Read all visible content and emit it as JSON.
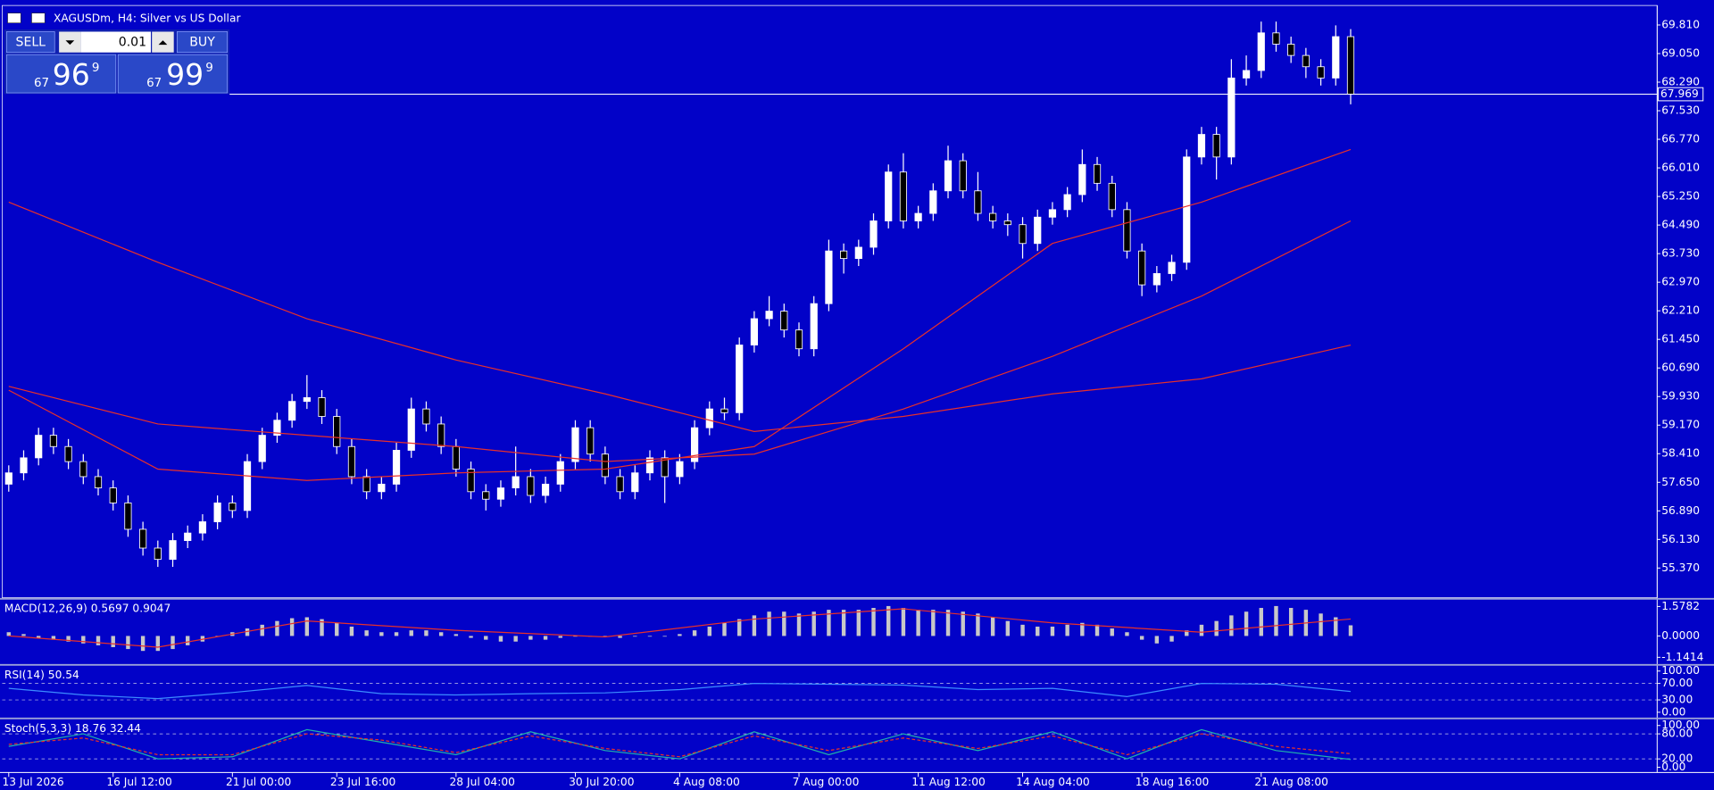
{
  "trade_panel": {
    "sell": "SELL",
    "buy": "BUY",
    "volume": "0.01",
    "bid": {
      "big": "67",
      "main": "96",
      "small": "9"
    },
    "ask": {
      "big": "67",
      "main": "99",
      "small": "9"
    }
  },
  "chart_data": [
    {
      "type": "candlestick",
      "title": "XAGUSDm, H4:  Silver vs US Dollar",
      "up_color": "#ffffff",
      "down_color": "#000000",
      "wick_color": "#ffffff",
      "last_price": 67.969,
      "ylim": [
        54.61,
        70.3
      ],
      "yticks": [
        {
          "value": 69.81,
          "label": "69.810"
        },
        {
          "value": 69.05,
          "label": "69.050"
        },
        {
          "value": 68.29,
          "label": "68.290"
        },
        {
          "value": 67.53,
          "label": "67.530"
        },
        {
          "value": 66.77,
          "label": "66.770"
        },
        {
          "value": 66.01,
          "label": "66.010"
        },
        {
          "value": 65.25,
          "label": "65.250"
        },
        {
          "value": 64.49,
          "label": "64.490"
        },
        {
          "value": 63.73,
          "label": "63.730"
        },
        {
          "value": 62.97,
          "label": "62.970"
        },
        {
          "value": 62.21,
          "label": "62.210"
        },
        {
          "value": 61.45,
          "label": "61.450"
        },
        {
          "value": 60.69,
          "label": "60.690"
        },
        {
          "value": 59.93,
          "label": "59.930"
        },
        {
          "value": 59.17,
          "label": "59.170"
        },
        {
          "value": 58.41,
          "label": "58.410"
        },
        {
          "value": 57.65,
          "label": "57.650"
        },
        {
          "value": 56.89,
          "label": "56.890"
        },
        {
          "value": 56.13,
          "label": "56.130"
        },
        {
          "value": 55.37,
          "label": "55.370"
        }
      ],
      "categories": [
        "13 Jul 2026",
        null,
        null,
        null,
        null,
        null,
        null,
        "16 Jul 12:00",
        null,
        null,
        null,
        null,
        null,
        null,
        null,
        "21 Jul 00:00",
        null,
        null,
        null,
        null,
        null,
        null,
        "23 Jul 16:00",
        null,
        null,
        null,
        null,
        null,
        null,
        null,
        "28 Jul 04:00",
        null,
        null,
        null,
        null,
        null,
        null,
        null,
        "30 Jul 20:00",
        null,
        null,
        null,
        null,
        null,
        null,
        "4 Aug 08:00",
        null,
        null,
        null,
        null,
        null,
        null,
        null,
        "7 Aug 00:00",
        null,
        null,
        null,
        null,
        null,
        null,
        null,
        "11 Aug 12:00",
        null,
        null,
        null,
        null,
        null,
        null,
        "14 Aug 04:00",
        null,
        null,
        null,
        null,
        null,
        null,
        null,
        "18 Aug 16:00",
        null,
        null,
        null,
        null,
        null,
        null,
        null,
        "21 Aug 08:00",
        null,
        null,
        null,
        null,
        null,
        null
      ],
      "candles": [
        [
          57.6,
          58.1,
          57.4,
          57.9
        ],
        [
          57.9,
          58.5,
          57.7,
          58.3
        ],
        [
          58.3,
          59.1,
          58.1,
          58.9
        ],
        [
          58.9,
          59.1,
          58.4,
          58.6
        ],
        [
          58.6,
          58.8,
          58.0,
          58.2
        ],
        [
          58.2,
          58.4,
          57.6,
          57.8
        ],
        [
          57.8,
          58.0,
          57.3,
          57.5
        ],
        [
          57.5,
          57.7,
          56.9,
          57.1
        ],
        [
          57.1,
          57.3,
          56.2,
          56.4
        ],
        [
          56.4,
          56.6,
          55.7,
          55.9
        ],
        [
          55.9,
          56.1,
          55.4,
          55.6
        ],
        [
          55.6,
          56.3,
          55.4,
          56.1
        ],
        [
          56.1,
          56.5,
          55.9,
          56.3
        ],
        [
          56.3,
          56.8,
          56.1,
          56.6
        ],
        [
          56.6,
          57.3,
          56.4,
          57.1
        ],
        [
          57.1,
          57.3,
          56.7,
          56.9
        ],
        [
          56.9,
          58.4,
          56.7,
          58.2
        ],
        [
          58.2,
          59.1,
          58.0,
          58.9
        ],
        [
          58.9,
          59.5,
          58.7,
          59.3
        ],
        [
          59.3,
          60.0,
          59.1,
          59.8
        ],
        [
          59.8,
          60.5,
          59.6,
          59.9
        ],
        [
          59.9,
          60.1,
          59.2,
          59.4
        ],
        [
          59.4,
          59.6,
          58.4,
          58.6
        ],
        [
          58.6,
          58.8,
          57.6,
          57.8
        ],
        [
          57.8,
          58.0,
          57.2,
          57.4
        ],
        [
          57.4,
          57.8,
          57.2,
          57.6
        ],
        [
          57.6,
          58.7,
          57.4,
          58.5
        ],
        [
          58.5,
          59.9,
          58.3,
          59.6
        ],
        [
          59.6,
          59.8,
          59.0,
          59.2
        ],
        [
          59.2,
          59.4,
          58.4,
          58.6
        ],
        [
          58.6,
          58.8,
          57.8,
          58.0
        ],
        [
          58.0,
          58.2,
          57.2,
          57.4
        ],
        [
          57.4,
          57.6,
          56.9,
          57.2
        ],
        [
          57.2,
          57.7,
          57.0,
          57.5
        ],
        [
          57.5,
          58.6,
          57.3,
          57.8
        ],
        [
          57.8,
          58.0,
          57.1,
          57.3
        ],
        [
          57.3,
          57.8,
          57.1,
          57.6
        ],
        [
          57.6,
          58.4,
          57.4,
          58.2
        ],
        [
          58.2,
          59.3,
          58.0,
          59.1
        ],
        [
          59.1,
          59.3,
          58.2,
          58.4
        ],
        [
          58.4,
          58.6,
          57.6,
          57.8
        ],
        [
          57.8,
          58.0,
          57.2,
          57.4
        ],
        [
          57.4,
          58.1,
          57.2,
          57.9
        ],
        [
          57.9,
          58.5,
          57.7,
          58.3
        ],
        [
          58.3,
          58.5,
          57.1,
          57.8
        ],
        [
          57.8,
          58.4,
          57.6,
          58.2
        ],
        [
          58.2,
          59.3,
          58.0,
          59.1
        ],
        [
          59.1,
          59.8,
          58.9,
          59.6
        ],
        [
          59.6,
          59.9,
          59.3,
          59.5
        ],
        [
          59.5,
          61.5,
          59.3,
          61.3
        ],
        [
          61.3,
          62.2,
          61.1,
          62.0
        ],
        [
          62.0,
          62.6,
          61.8,
          62.2
        ],
        [
          62.2,
          62.4,
          61.5,
          61.7
        ],
        [
          61.7,
          61.9,
          61.0,
          61.2
        ],
        [
          61.2,
          62.6,
          61.0,
          62.4
        ],
        [
          62.4,
          64.1,
          62.2,
          63.8
        ],
        [
          63.8,
          64.0,
          63.2,
          63.6
        ],
        [
          63.6,
          64.1,
          63.4,
          63.9
        ],
        [
          63.9,
          64.8,
          63.7,
          64.6
        ],
        [
          64.6,
          66.1,
          64.4,
          65.9
        ],
        [
          65.9,
          66.4,
          64.4,
          64.6
        ],
        [
          64.6,
          65.0,
          64.4,
          64.8
        ],
        [
          64.8,
          65.6,
          64.6,
          65.4
        ],
        [
          65.4,
          66.6,
          65.2,
          66.2
        ],
        [
          66.2,
          66.4,
          65.2,
          65.4
        ],
        [
          65.4,
          65.9,
          64.6,
          64.8
        ],
        [
          64.8,
          65.0,
          64.4,
          64.6
        ],
        [
          64.6,
          64.8,
          64.2,
          64.5
        ],
        [
          64.5,
          64.7,
          63.6,
          64.0
        ],
        [
          64.0,
          64.9,
          63.8,
          64.7
        ],
        [
          64.7,
          65.1,
          64.5,
          64.9
        ],
        [
          64.9,
          65.5,
          64.7,
          65.3
        ],
        [
          65.3,
          66.5,
          65.1,
          66.1
        ],
        [
          66.1,
          66.3,
          65.4,
          65.6
        ],
        [
          65.6,
          65.8,
          64.7,
          64.9
        ],
        [
          64.9,
          65.1,
          63.6,
          63.8
        ],
        [
          63.8,
          64.0,
          62.6,
          62.9
        ],
        [
          62.9,
          63.4,
          62.7,
          63.2
        ],
        [
          63.2,
          63.7,
          63.0,
          63.5
        ],
        [
          63.5,
          66.5,
          63.3,
          66.3
        ],
        [
          66.3,
          67.1,
          66.1,
          66.9
        ],
        [
          66.9,
          67.1,
          65.7,
          66.3
        ],
        [
          66.3,
          68.9,
          66.1,
          68.4
        ],
        [
          68.4,
          69.0,
          68.2,
          68.6
        ],
        [
          68.6,
          69.9,
          68.4,
          69.6
        ],
        [
          69.6,
          69.9,
          69.1,
          69.3
        ],
        [
          69.3,
          69.5,
          68.8,
          69.0
        ],
        [
          69.0,
          69.2,
          68.4,
          68.7
        ],
        [
          68.7,
          68.9,
          68.2,
          68.4
        ],
        [
          68.4,
          69.8,
          68.2,
          69.5
        ],
        [
          69.5,
          69.7,
          67.7,
          67.969
        ]
      ],
      "series": [
        {
          "color": "#e8302a",
          "x": [
            0,
            10,
            20,
            30,
            40,
            50,
            60,
            70,
            80,
            90
          ],
          "values": [
            60.1,
            58.0,
            57.7,
            57.9,
            58.0,
            58.6,
            61.2,
            64.0,
            65.1,
            66.5
          ]
        },
        {
          "color": "#e8302a",
          "x": [
            0,
            10,
            20,
            30,
            40,
            50,
            60,
            70,
            80,
            90
          ],
          "values": [
            60.2,
            59.2,
            58.9,
            58.6,
            58.2,
            58.4,
            59.6,
            61.0,
            62.6,
            64.6
          ]
        },
        {
          "color": "#e8302a",
          "x": [
            0,
            10,
            20,
            30,
            40,
            50,
            60,
            70,
            80,
            90
          ],
          "values": [
            65.1,
            63.5,
            62.0,
            60.9,
            60.0,
            59.0,
            59.4,
            60.0,
            60.4,
            61.3
          ]
        }
      ]
    },
    {
      "type": "histogram",
      "title": "MACD(12,26,9) 0.5697 0.9047",
      "color": "#c8c8c8",
      "ylim": [
        -1.46,
        1.93
      ],
      "yticks": [
        1.5782,
        {
          "value": 0,
          "label": "0.0000"
        },
        -1.1414
      ],
      "values": [
        0.2,
        0.1,
        -0.1,
        -0.2,
        -0.3,
        -0.4,
        -0.5,
        -0.6,
        -0.7,
        -0.8,
        -0.8,
        -0.7,
        -0.5,
        -0.3,
        0.0,
        0.2,
        0.4,
        0.6,
        0.8,
        0.95,
        1.0,
        0.9,
        0.7,
        0.5,
        0.3,
        0.2,
        0.2,
        0.3,
        0.3,
        0.2,
        0.1,
        -0.1,
        -0.2,
        -0.3,
        -0.3,
        -0.2,
        -0.2,
        -0.1,
        0.0,
        0.0,
        0.0,
        -0.1,
        0.0,
        0.0,
        0.0,
        0.1,
        0.3,
        0.5,
        0.7,
        0.9,
        1.1,
        1.3,
        1.3,
        1.2,
        1.3,
        1.4,
        1.4,
        1.4,
        1.5,
        1.6,
        1.5,
        1.4,
        1.4,
        1.4,
        1.3,
        1.2,
        1.0,
        0.8,
        0.6,
        0.5,
        0.5,
        0.6,
        0.7,
        0.6,
        0.4,
        0.2,
        -0.2,
        -0.4,
        -0.3,
        0.3,
        0.6,
        0.8,
        1.1,
        1.3,
        1.5,
        1.6,
        1.5,
        1.4,
        1.2,
        1.0,
        0.5697
      ],
      "series": [
        {
          "color": "#e8302a",
          "x": [
            0,
            10,
            20,
            30,
            40,
            50,
            60,
            70,
            80,
            90
          ],
          "values": [
            0.0,
            -0.6,
            0.8,
            0.3,
            -0.05,
            0.9,
            1.45,
            0.7,
            0.2,
            0.9047
          ]
        }
      ]
    },
    {
      "type": "line",
      "title": "RSI(14) 50.54",
      "ylim": [
        -11,
        111
      ],
      "yticks": [
        {
          "value": 100,
          "label": "100.00"
        },
        {
          "value": 70,
          "label": "70.00"
        },
        {
          "value": 30,
          "label": "30.00"
        },
        {
          "value": 0,
          "label": "0.00"
        }
      ],
      "series": [
        {
          "color": "#3c8cff",
          "x": [
            0,
            5,
            10,
            15,
            20,
            25,
            30,
            35,
            40,
            45,
            50,
            55,
            60,
            65,
            70,
            75,
            80,
            85,
            90
          ],
          "values": [
            58,
            42,
            33,
            48,
            65,
            45,
            42,
            45,
            47,
            55,
            70,
            68,
            66,
            55,
            58,
            38,
            70,
            68,
            50.54
          ]
        }
      ]
    },
    {
      "type": "line",
      "title": "Stoch(5,3,3) 18.76 32.44",
      "ylim": [
        -10,
        113
      ],
      "yticks": [
        {
          "value": 100,
          "label": "100.00"
        },
        {
          "value": 80,
          "label": "80.00"
        },
        {
          "value": 20,
          "label": "20.00"
        },
        {
          "value": 0,
          "label": "0.00"
        }
      ],
      "series": [
        {
          "color": "#20b2aa",
          "x": [
            0,
            5,
            10,
            15,
            20,
            25,
            30,
            35,
            40,
            45,
            50,
            55,
            60,
            65,
            70,
            75,
            80,
            85,
            90
          ],
          "values": [
            50,
            80,
            20,
            25,
            90,
            60,
            30,
            85,
            40,
            20,
            85,
            30,
            80,
            40,
            85,
            20,
            90,
            40,
            18.76
          ]
        },
        {
          "color": "#e8302a",
          "style": "dashed",
          "x": [
            0,
            5,
            10,
            15,
            20,
            25,
            30,
            35,
            40,
            45,
            50,
            55,
            60,
            65,
            70,
            75,
            80,
            85,
            90
          ],
          "values": [
            55,
            70,
            30,
            30,
            80,
            65,
            35,
            75,
            45,
            25,
            75,
            40,
            70,
            45,
            75,
            30,
            80,
            50,
            32.44
          ]
        }
      ]
    }
  ]
}
